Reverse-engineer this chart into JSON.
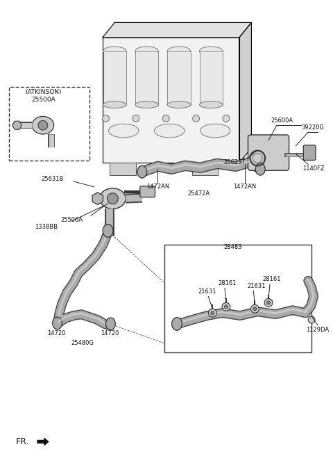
{
  "bg_color": "#ffffff",
  "fig_width": 4.8,
  "fig_height": 6.56,
  "dpi": 100,
  "labels": {
    "ATKINSON": "(ATKINSON)",
    "25500A_atk": "25500A",
    "25631B": "25631B",
    "25500A_main": "25500A",
    "1338BB": "1338BB",
    "1472AN_left": "1472AN",
    "1472AN_right": "1472AN",
    "25472A": "25472A",
    "25600A": "25600A",
    "25623T": "25623T",
    "39220G": "39220G",
    "1140FZ": "1140FZ",
    "28483": "28483",
    "28161_a": "28161",
    "21631_a": "21631",
    "28161_b": "28161",
    "21631_b": "21631",
    "1129DA": "1129DA",
    "14720_left": "14720",
    "14720_right": "14720",
    "25480G": "25480G",
    "FR": "FR."
  }
}
